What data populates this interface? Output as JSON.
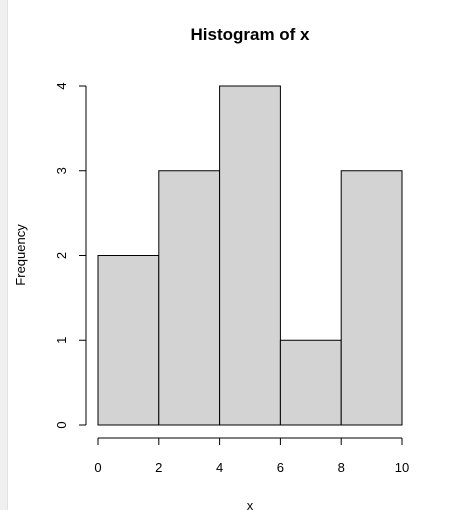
{
  "chart_data": {
    "type": "bar",
    "title": "Histogram of x",
    "xlabel": "x",
    "ylabel": "Frequency",
    "bins": [
      [
        0,
        2
      ],
      [
        2,
        4
      ],
      [
        4,
        6
      ],
      [
        6,
        8
      ],
      [
        8,
        10
      ]
    ],
    "values": [
      2,
      3,
      4,
      1,
      3
    ],
    "xlim": [
      0,
      10
    ],
    "ylim": [
      0,
      4
    ],
    "xticks": [
      "0",
      "2",
      "4",
      "6",
      "8",
      "10"
    ],
    "yticks": [
      "0",
      "1",
      "2",
      "3",
      "4"
    ],
    "bar_color": "#d3d3d3",
    "edge_color": "#000000",
    "grid": false
  }
}
